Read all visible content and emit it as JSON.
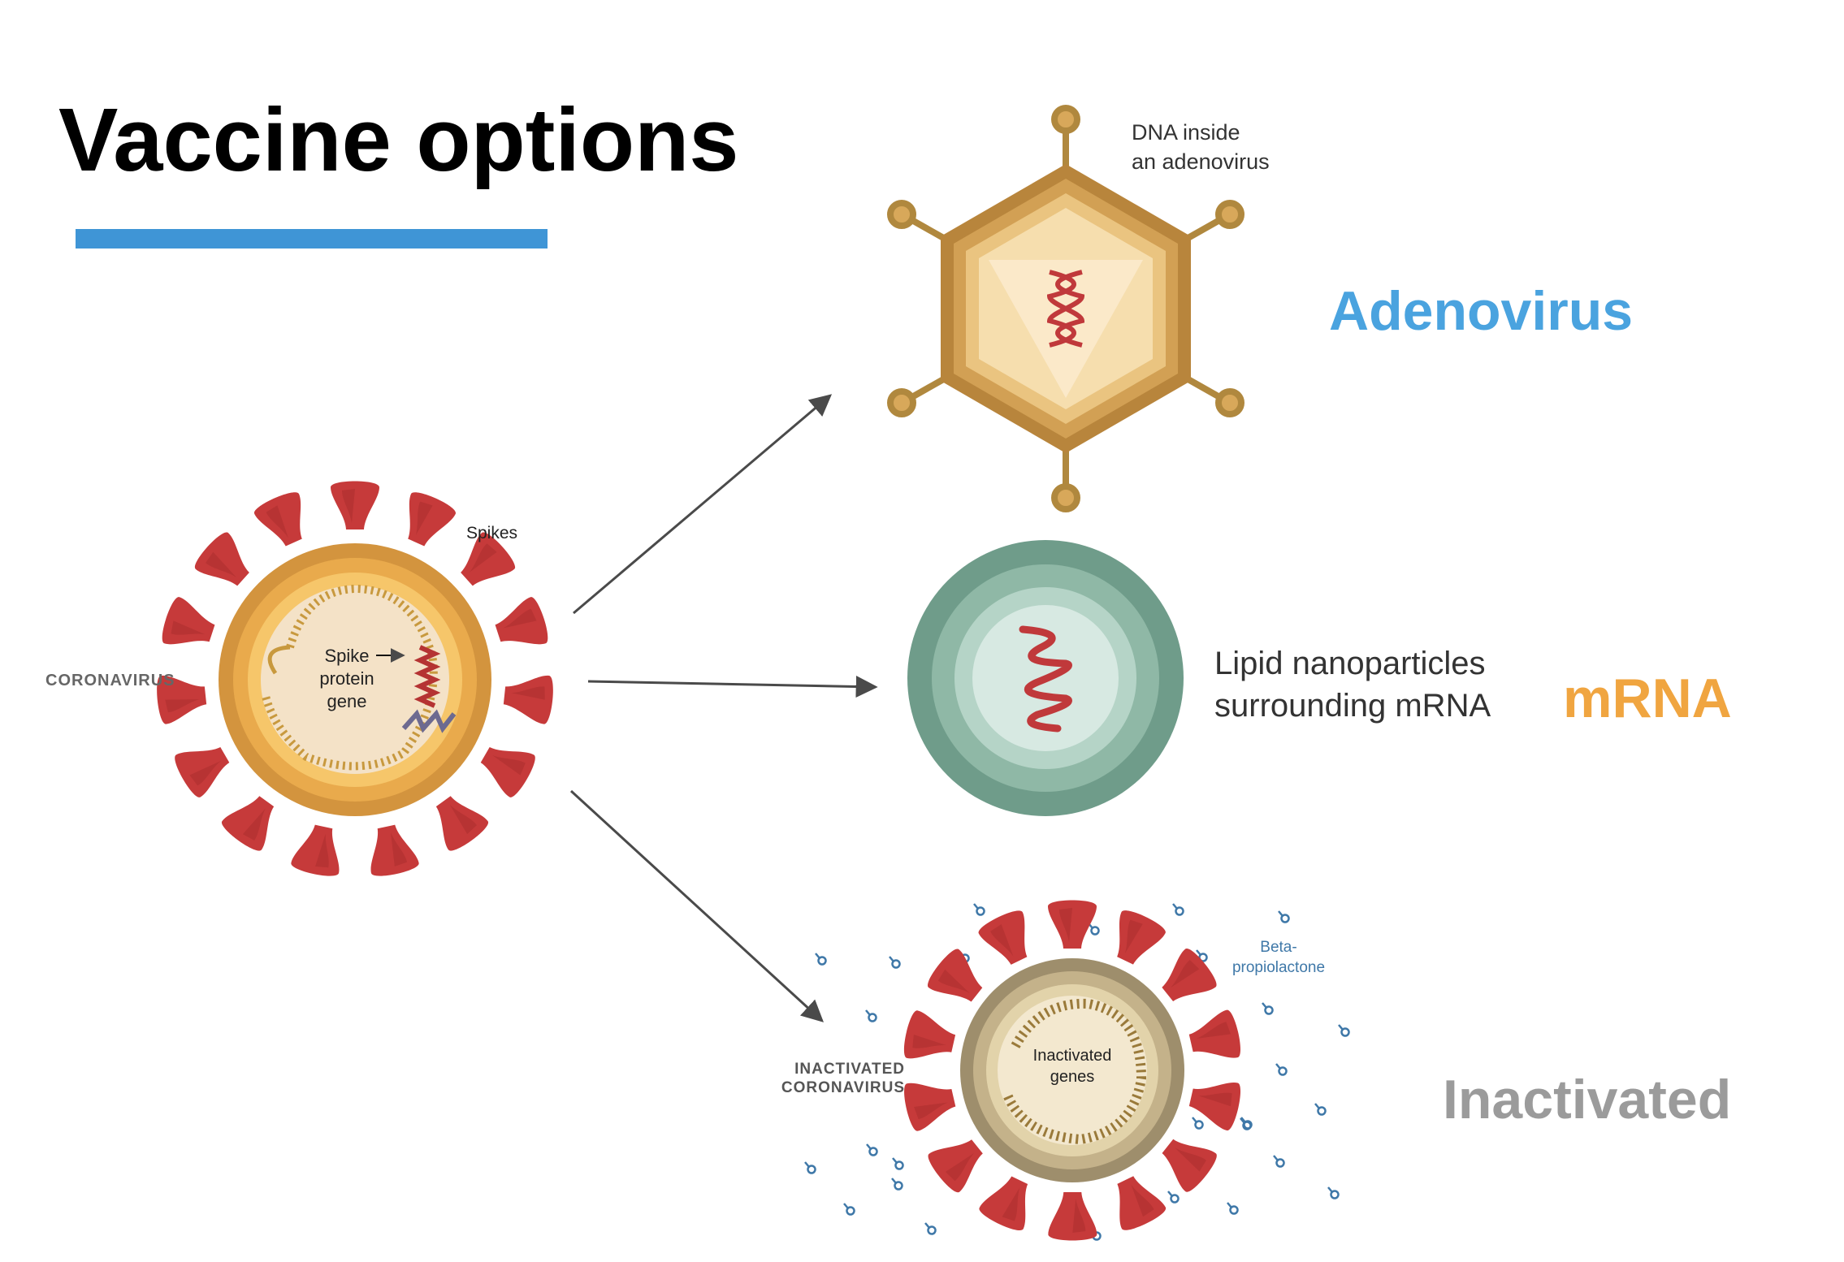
{
  "title": "Vaccine options",
  "colors": {
    "title_bar": "#3f95d6",
    "adenovirus": "#4aa3df",
    "mrna": "#f0a540",
    "inactivated": "#9b9b9b",
    "spike": "#c63a3a",
    "arrow": "#4a4a4a"
  },
  "coronavirus": {
    "label": "CORONAVIRUS",
    "spikes_label": "Spikes",
    "gene_label": [
      "Spike",
      "protein",
      "gene"
    ]
  },
  "adenovirus": {
    "caption_lines": [
      "DNA inside",
      "an adenovirus"
    ],
    "name": "Adenovirus"
  },
  "mrna": {
    "caption_lines": [
      "Lipid nanoparticles",
      "surrounding mRNA"
    ],
    "name": "mRNA"
  },
  "inactivated": {
    "label_lines": [
      "INACTIVATED",
      "CORONAVIRUS"
    ],
    "genes_label": [
      "Inactivated",
      "genes"
    ],
    "chemical_lines": [
      "Beta-",
      "propiolactone"
    ],
    "name": "Inactivated"
  }
}
